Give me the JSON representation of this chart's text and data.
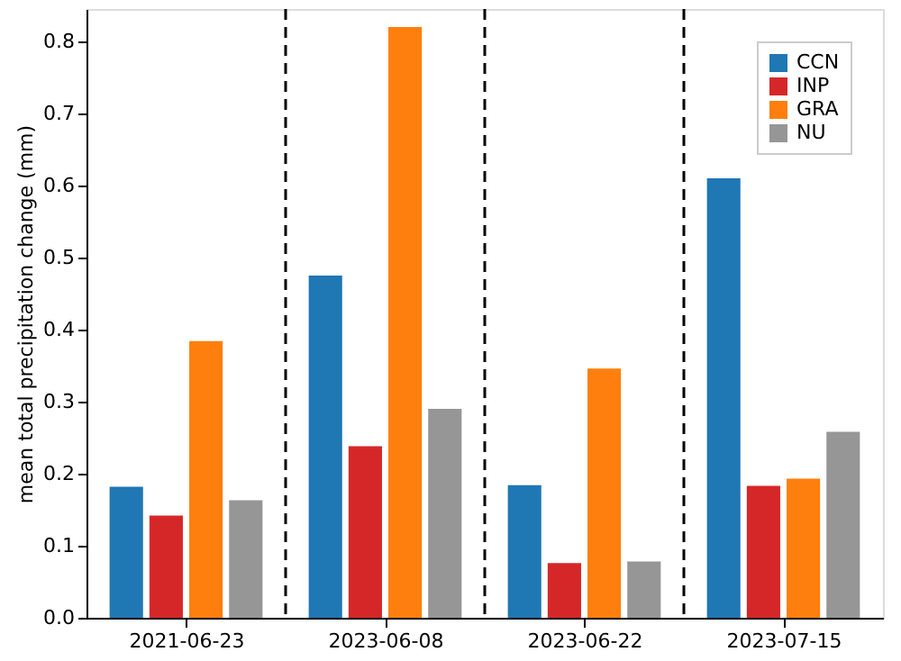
{
  "chart_data": {
    "type": "bar",
    "ylabel": "mean total precipitation change (mm)",
    "categories": [
      "2021-06-23",
      "2023-06-08",
      "2023-06-22",
      "2023-07-15"
    ],
    "series": [
      {
        "name": "CCN",
        "color": "#1f77b4",
        "values": [
          0.182,
          0.475,
          0.184,
          0.61
        ]
      },
      {
        "name": "INP",
        "color": "#d62728",
        "values": [
          0.142,
          0.238,
          0.076,
          0.183
        ]
      },
      {
        "name": "GRA",
        "color": "#ff7f0e",
        "values": [
          0.384,
          0.82,
          0.346,
          0.193
        ]
      },
      {
        "name": "NU",
        "color": "#969696",
        "values": [
          0.163,
          0.29,
          0.078,
          0.258
        ]
      }
    ],
    "ylim": [
      0,
      0.845
    ],
    "yticks": [
      {
        "value": 0,
        "label": "0.0"
      },
      0.1,
      0.2,
      0.3,
      0.4,
      0.5,
      0.6,
      0.7,
      0.8
    ],
    "grid": false,
    "legend": "top right"
  }
}
